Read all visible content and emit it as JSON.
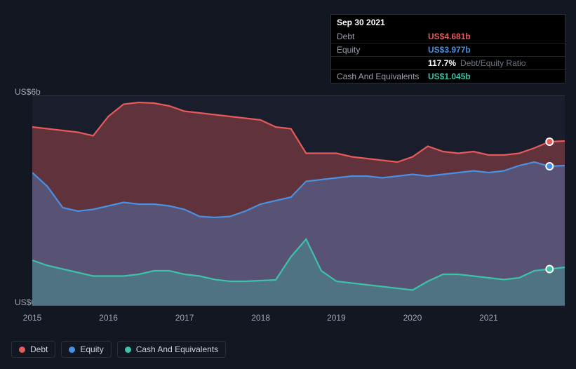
{
  "tooltip": {
    "date": "Sep 30 2021",
    "debt_label": "Debt",
    "debt_value": "US$4.681b",
    "equity_label": "Equity",
    "equity_value": "US$3.977b",
    "ratio_value": "117.7%",
    "ratio_label": "Debt/Equity Ratio",
    "cash_label": "Cash And Equivalents",
    "cash_value": "US$1.045b"
  },
  "chart": {
    "type": "area",
    "background_color": "#131722",
    "plot_background": "#1a1e2c",
    "grid_color": "#2a2e39",
    "y_max_label": "US$6b",
    "y_min_label": "US$0",
    "y_max": 6,
    "y_min": 0,
    "x_labels": [
      "2015",
      "2016",
      "2017",
      "2018",
      "2019",
      "2020",
      "2021"
    ],
    "x_positions": [
      0.0,
      0.143,
      0.286,
      0.429,
      0.571,
      0.714,
      0.857
    ],
    "series": {
      "debt": {
        "label": "Debt",
        "color": "#e65a5a",
        "fill_opacity": 0.35,
        "values": [
          5.1,
          5.05,
          5.0,
          4.95,
          4.85,
          5.4,
          5.75,
          5.8,
          5.78,
          5.7,
          5.55,
          5.5,
          5.45,
          5.4,
          5.35,
          5.3,
          5.1,
          5.05,
          4.35,
          4.35,
          4.35,
          4.25,
          4.2,
          4.15,
          4.1,
          4.25,
          4.55,
          4.4,
          4.35,
          4.4,
          4.3,
          4.3,
          4.35,
          4.5,
          4.68,
          4.7
        ]
      },
      "equity": {
        "label": "Equity",
        "color": "#4a90e2",
        "fill_opacity": 0.35,
        "values": [
          3.8,
          3.4,
          2.8,
          2.7,
          2.75,
          2.85,
          2.95,
          2.9,
          2.9,
          2.85,
          2.75,
          2.55,
          2.52,
          2.55,
          2.7,
          2.9,
          3.0,
          3.1,
          3.55,
          3.6,
          3.65,
          3.7,
          3.7,
          3.65,
          3.7,
          3.75,
          3.7,
          3.75,
          3.8,
          3.85,
          3.8,
          3.85,
          4.0,
          4.1,
          3.98,
          4.0
        ]
      },
      "cash": {
        "label": "Cash And Equivalents",
        "color": "#3ec1a8",
        "fill_opacity": 0.3,
        "values": [
          1.3,
          1.15,
          1.05,
          0.95,
          0.85,
          0.85,
          0.85,
          0.9,
          1.0,
          1.0,
          0.9,
          0.85,
          0.75,
          0.7,
          0.7,
          0.72,
          0.74,
          1.4,
          1.9,
          1.0,
          0.7,
          0.65,
          0.6,
          0.55,
          0.5,
          0.45,
          0.7,
          0.9,
          0.9,
          0.85,
          0.8,
          0.75,
          0.8,
          1.0,
          1.05,
          1.1
        ]
      }
    },
    "current_index": 34,
    "legend": {
      "debt": "Debt",
      "equity": "Equity",
      "cash": "Cash And Equivalents"
    }
  }
}
